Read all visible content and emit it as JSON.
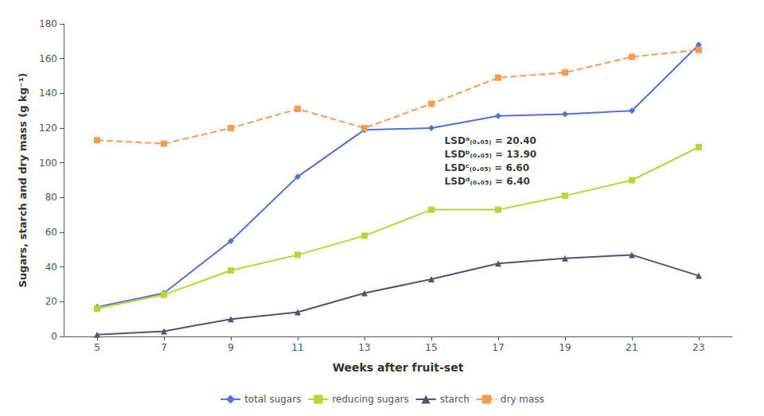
{
  "chart_data": {
    "type": "line",
    "xlabel": "Weeks after fruit-set",
    "ylabel": "Sugars, starch and dry mass (g kg⁻¹)",
    "x": [
      5,
      7,
      9,
      11,
      13,
      15,
      17,
      19,
      21,
      23
    ],
    "series": [
      {
        "name": "total sugars",
        "values": [
          17,
          25,
          55,
          92,
          119,
          120,
          127,
          128,
          130,
          168
        ],
        "marker": "diamond",
        "line_style": "solid"
      },
      {
        "name": "reducing sugars",
        "values": [
          16,
          24,
          38,
          47,
          58,
          73,
          73,
          81,
          90,
          109
        ],
        "marker": "square",
        "line_style": "solid"
      },
      {
        "name": "starch",
        "values": [
          1,
          3,
          10,
          14,
          25,
          33,
          42,
          45,
          47,
          35
        ],
        "marker": "triangle",
        "line_style": "solid"
      },
      {
        "name": "dry mass",
        "values": [
          113,
          111,
          120,
          131,
          120,
          134,
          149,
          152,
          161,
          165
        ],
        "marker": "square",
        "line_style": "dashed"
      }
    ],
    "xlim": [
      4,
      24
    ],
    "xticks": [
      5,
      7,
      9,
      11,
      13,
      15,
      17,
      19,
      21,
      23
    ],
    "ylim": [
      0,
      180
    ],
    "yticks": [
      0,
      20,
      40,
      60,
      80,
      100,
      120,
      140,
      160,
      180
    ],
    "grid": false,
    "legend": "bottom",
    "annotations": [
      {
        "text": "LSDᵃ₍₀.₀₅₎ = 20.40\nLSDᵇ₍₀.₀₅₎ = 13.90\nLSDᶜ₍₀.₀₅₎ = 6.60\nLSDᵈ₍₀.₀₅₎ = 6.40",
        "x": 15.3,
        "y": 118
      }
    ]
  }
}
